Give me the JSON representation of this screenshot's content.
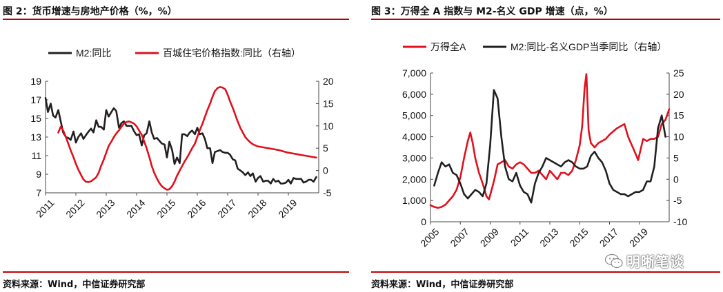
{
  "charts": [
    {
      "title": "图 2：货币增速与房地产价格（%，%）",
      "source": "资料来源：Wind，中信证券研究部",
      "legend": [
        {
          "name": "M2:同比",
          "color": "#231f20"
        },
        {
          "name": "百城住宅价格指数:同比（右轴）",
          "color": "#e0101c"
        }
      ]
    },
    {
      "title": "图 3：万得全 A 指数与 M2-名义 GDP 增速（点，%）",
      "source": "资料来源：Wind，中信证券研究部",
      "legend": [
        {
          "name": "万得全A",
          "color": "#e0101c"
        },
        {
          "name": "M2:同比-名义GDP当季同比（右轴）",
          "color": "#231f20"
        }
      ]
    }
  ],
  "watermark": "明晰笔谈",
  "chart_data": [
    {
      "type": "line",
      "title": "",
      "xlabel": "",
      "ylabel": "",
      "x_ticks": [
        "2011",
        "2012",
        "2013",
        "2014",
        "2015",
        "2016",
        "2017",
        "2018",
        "2019"
      ],
      "y_left": {
        "range": [
          7,
          19
        ],
        "ticks": [
          "7",
          "9",
          "11",
          "13",
          "15",
          "17",
          "19"
        ]
      },
      "y_right": {
        "range": [
          -5,
          20
        ],
        "ticks": [
          "-5",
          "0",
          "5",
          "10",
          "15",
          "20"
        ]
      },
      "xlim": [
        2011,
        2020
      ],
      "grid": false,
      "legend_position": "top",
      "series": [
        {
          "name": "M2:同比",
          "axis": "left",
          "color": "#231f20",
          "x": [
            2011.0,
            2011.08,
            2011.17,
            2011.25,
            2011.33,
            2011.42,
            2011.5,
            2011.58,
            2011.67,
            2011.75,
            2011.83,
            2011.92,
            2012.0,
            2012.08,
            2012.17,
            2012.25,
            2012.33,
            2012.42,
            2012.5,
            2012.58,
            2012.67,
            2012.75,
            2012.83,
            2012.92,
            2013.0,
            2013.08,
            2013.17,
            2013.25,
            2013.33,
            2013.42,
            2013.5,
            2013.58,
            2013.67,
            2013.75,
            2013.83,
            2013.92,
            2014.0,
            2014.08,
            2014.17,
            2014.25,
            2014.33,
            2014.42,
            2014.5,
            2014.58,
            2014.67,
            2014.75,
            2014.83,
            2014.92,
            2015.0,
            2015.08,
            2015.17,
            2015.25,
            2015.33,
            2015.42,
            2015.5,
            2015.58,
            2015.67,
            2015.75,
            2015.83,
            2015.92,
            2016.0,
            2016.08,
            2016.17,
            2016.25,
            2016.33,
            2016.42,
            2016.5,
            2016.58,
            2016.67,
            2016.75,
            2016.83,
            2016.92,
            2017.0,
            2017.08,
            2017.17,
            2017.25,
            2017.33,
            2017.42,
            2017.5,
            2017.58,
            2017.67,
            2017.75,
            2017.83,
            2017.92,
            2018.0,
            2018.08,
            2018.17,
            2018.25,
            2018.33,
            2018.42,
            2018.5,
            2018.58,
            2018.67,
            2018.75,
            2018.83,
            2018.92,
            2019.0,
            2019.08,
            2019.17,
            2019.25,
            2019.33,
            2019.42,
            2019.5,
            2019.58,
            2019.67,
            2019.75,
            2019.83,
            2019.92
          ],
          "values": [
            17.2,
            15.7,
            16.6,
            15.3,
            15.1,
            15.9,
            14.7,
            13.5,
            13.0,
            12.9,
            12.7,
            13.6,
            12.4,
            13.0,
            13.4,
            12.8,
            13.2,
            13.6,
            13.9,
            13.5,
            14.8,
            14.1,
            14.1,
            13.8,
            15.9,
            15.2,
            15.7,
            16.1,
            15.8,
            14.0,
            14.5,
            14.7,
            14.2,
            14.2,
            14.2,
            13.6,
            13.2,
            13.3,
            12.1,
            13.2,
            13.4,
            14.7,
            13.5,
            12.8,
            12.9,
            12.6,
            12.3,
            12.2,
            10.8,
            12.5,
            11.6,
            10.1,
            10.8,
            10.2,
            13.3,
            13.3,
            13.1,
            13.5,
            13.7,
            13.3,
            14.0,
            13.3,
            13.4,
            12.8,
            11.8,
            11.8,
            10.2,
            11.4,
            11.5,
            11.6,
            11.4,
            11.3,
            11.3,
            11.1,
            10.6,
            10.5,
            9.6,
            9.4,
            9.2,
            8.9,
            9.2,
            8.8,
            9.1,
            8.2,
            8.6,
            8.8,
            8.2,
            8.3,
            8.3,
            8.0,
            8.5,
            8.2,
            8.3,
            8.0,
            8.0,
            8.1,
            8.4,
            8.0,
            8.6,
            8.5,
            8.5,
            8.5,
            8.1,
            8.2,
            8.4,
            8.4,
            8.2,
            8.7
          ]
        },
        {
          "name": "百城住宅价格指数:同比（右轴）",
          "axis": "right",
          "color": "#e0101c",
          "x": [
            2011.42,
            2011.5,
            2011.58,
            2011.67,
            2011.75,
            2011.83,
            2011.92,
            2012.0,
            2012.08,
            2012.17,
            2012.25,
            2012.33,
            2012.42,
            2012.5,
            2012.58,
            2012.67,
            2012.75,
            2012.83,
            2012.92,
            2013.0,
            2013.08,
            2013.17,
            2013.25,
            2013.33,
            2013.42,
            2013.5,
            2013.58,
            2013.67,
            2013.75,
            2013.83,
            2013.92,
            2014.0,
            2014.08,
            2014.17,
            2014.25,
            2014.33,
            2014.42,
            2014.5,
            2014.58,
            2014.67,
            2014.75,
            2014.83,
            2014.92,
            2015.0,
            2015.08,
            2015.17,
            2015.25,
            2015.33,
            2015.42,
            2015.5,
            2015.58,
            2015.67,
            2015.75,
            2015.83,
            2015.92,
            2016.0,
            2016.08,
            2016.17,
            2016.25,
            2016.33,
            2016.42,
            2016.5,
            2016.58,
            2016.67,
            2016.75,
            2016.83,
            2016.92,
            2017.0,
            2017.08,
            2017.17,
            2017.25,
            2017.33,
            2017.42,
            2017.5,
            2017.58,
            2017.67,
            2017.75,
            2017.83,
            2017.92,
            2018.0,
            2018.17,
            2018.33,
            2018.5,
            2018.67,
            2018.83,
            2019.0,
            2019.17,
            2019.33,
            2019.5,
            2019.67,
            2019.83,
            2019.92
          ],
          "values": [
            8.5,
            9.8,
            9.0,
            7.5,
            6.0,
            4.5,
            3.0,
            1.5,
            0.2,
            -1.0,
            -2.0,
            -2.5,
            -2.6,
            -2.4,
            -2.0,
            -1.5,
            -0.5,
            1.0,
            2.5,
            4.0,
            5.5,
            6.5,
            7.5,
            8.3,
            9.0,
            9.8,
            10.5,
            10.9,
            11.0,
            10.8,
            10.5,
            9.9,
            9.0,
            8.0,
            6.5,
            5.0,
            3.0,
            1.0,
            -0.5,
            -1.8,
            -2.8,
            -3.5,
            -4.0,
            -4.3,
            -4.2,
            -3.5,
            -2.5,
            -1.2,
            0.0,
            1.0,
            2.0,
            3.0,
            4.0,
            5.0,
            6.0,
            7.5,
            9.0,
            10.5,
            12.0,
            13.5,
            15.0,
            16.5,
            17.8,
            18.5,
            18.7,
            18.6,
            18.2,
            17.0,
            15.5,
            14.0,
            12.5,
            11.0,
            9.5,
            8.5,
            7.5,
            6.8,
            6.3,
            5.9,
            5.6,
            5.4,
            5.2,
            5.0,
            4.8,
            4.6,
            4.3,
            4.0,
            3.8,
            3.6,
            3.4,
            3.2,
            3.0,
            2.9
          ]
        }
      ]
    },
    {
      "type": "line",
      "title": "",
      "xlabel": "",
      "ylabel": "",
      "x_ticks": [
        "2005",
        "2007",
        "2009",
        "2011",
        "2013",
        "2015",
        "2017",
        "2019"
      ],
      "y_left": {
        "range": [
          0,
          7000
        ],
        "ticks": [
          "0",
          "1,000",
          "2,000",
          "3,000",
          "4,000",
          "5,000",
          "6,000",
          "7,000"
        ]
      },
      "y_right": {
        "range": [
          -10,
          25
        ],
        "ticks": [
          "-10",
          "-5",
          "0",
          "5",
          "10",
          "15",
          "20",
          "25"
        ]
      },
      "xlim": [
        2005,
        2021
      ],
      "grid": false,
      "legend_position": "top",
      "series": [
        {
          "name": "万得全A",
          "axis": "left",
          "color": "#e0101c",
          "x": [
            2005.0,
            2005.25,
            2005.5,
            2005.75,
            2006.0,
            2006.25,
            2006.5,
            2006.75,
            2007.0,
            2007.25,
            2007.5,
            2007.67,
            2007.83,
            2008.0,
            2008.25,
            2008.5,
            2008.75,
            2008.92,
            2009.25,
            2009.5,
            2009.75,
            2010.0,
            2010.25,
            2010.5,
            2010.75,
            2011.0,
            2011.25,
            2011.5,
            2011.75,
            2012.0,
            2012.25,
            2012.5,
            2012.75,
            2013.0,
            2013.25,
            2013.5,
            2013.75,
            2014.0,
            2014.25,
            2014.5,
            2014.75,
            2015.0,
            2015.17,
            2015.33,
            2015.45,
            2015.6,
            2015.75,
            2016.0,
            2016.25,
            2016.5,
            2016.75,
            2017.0,
            2017.5,
            2018.0,
            2018.25,
            2018.5,
            2018.75,
            2018.92,
            2019.25,
            2019.5,
            2019.75,
            2020.0,
            2020.25,
            2020.5,
            2020.75,
            2021.0
          ],
          "values": [
            780,
            700,
            650,
            700,
            800,
            1000,
            1200,
            1500,
            2100,
            3000,
            3800,
            4200,
            3700,
            3000,
            2300,
            1800,
            1200,
            1050,
            1900,
            2700,
            2800,
            2900,
            2600,
            2500,
            2700,
            2800,
            2700,
            2500,
            2300,
            2300,
            2400,
            2200,
            2000,
            2400,
            2200,
            2000,
            2300,
            2300,
            2200,
            2400,
            2900,
            3600,
            4500,
            6300,
            6950,
            4300,
            3700,
            3500,
            3700,
            3800,
            3900,
            4100,
            4400,
            4600,
            4000,
            3600,
            3200,
            2900,
            3900,
            3800,
            3900,
            3900,
            4000,
            4600,
            4800,
            5300
          ]
        },
        {
          "name": "M2:同比-名义GDP当季同比（右轴）",
          "axis": "right",
          "color": "#231f20",
          "x": [
            2005.25,
            2005.5,
            2005.75,
            2006.0,
            2006.25,
            2006.5,
            2006.75,
            2007.0,
            2007.25,
            2007.5,
            2007.75,
            2008.0,
            2008.25,
            2008.5,
            2008.75,
            2009.0,
            2009.25,
            2009.5,
            2009.75,
            2010.0,
            2010.25,
            2010.5,
            2010.75,
            2011.0,
            2011.25,
            2011.5,
            2011.75,
            2012.0,
            2012.25,
            2012.5,
            2012.75,
            2013.0,
            2013.25,
            2013.5,
            2013.75,
            2014.0,
            2014.25,
            2014.5,
            2014.75,
            2015.0,
            2015.25,
            2015.5,
            2015.75,
            2016.0,
            2016.25,
            2016.5,
            2016.75,
            2017.0,
            2017.25,
            2017.5,
            2017.75,
            2018.0,
            2018.25,
            2018.5,
            2018.75,
            2019.0,
            2019.25,
            2019.5,
            2019.75,
            2020.0,
            2020.25,
            2020.5,
            2020.75
          ],
          "values": [
            -1.5,
            1.5,
            4.0,
            3.0,
            3.5,
            1.5,
            1.0,
            -1.0,
            -3.5,
            -4.5,
            -3.5,
            -2.5,
            -3.0,
            -4.0,
            -1.0,
            8.0,
            21.0,
            19.0,
            10.0,
            3.0,
            0.0,
            -0.5,
            1.5,
            -1.5,
            -3.0,
            -3.5,
            -5.5,
            -1.0,
            1.5,
            3.0,
            5.0,
            4.5,
            4.0,
            3.5,
            3.0,
            4.0,
            4.5,
            4.0,
            3.0,
            2.5,
            2.5,
            3.0,
            5.5,
            6.5,
            5.0,
            4.0,
            2.0,
            -1.0,
            -2.5,
            -3.0,
            -3.5,
            -3.5,
            -4.0,
            -3.5,
            -3.0,
            -3.0,
            -2.5,
            -0.5,
            -0.5,
            3.0,
            12.0,
            15.0,
            10.0
          ]
        }
      ]
    }
  ]
}
